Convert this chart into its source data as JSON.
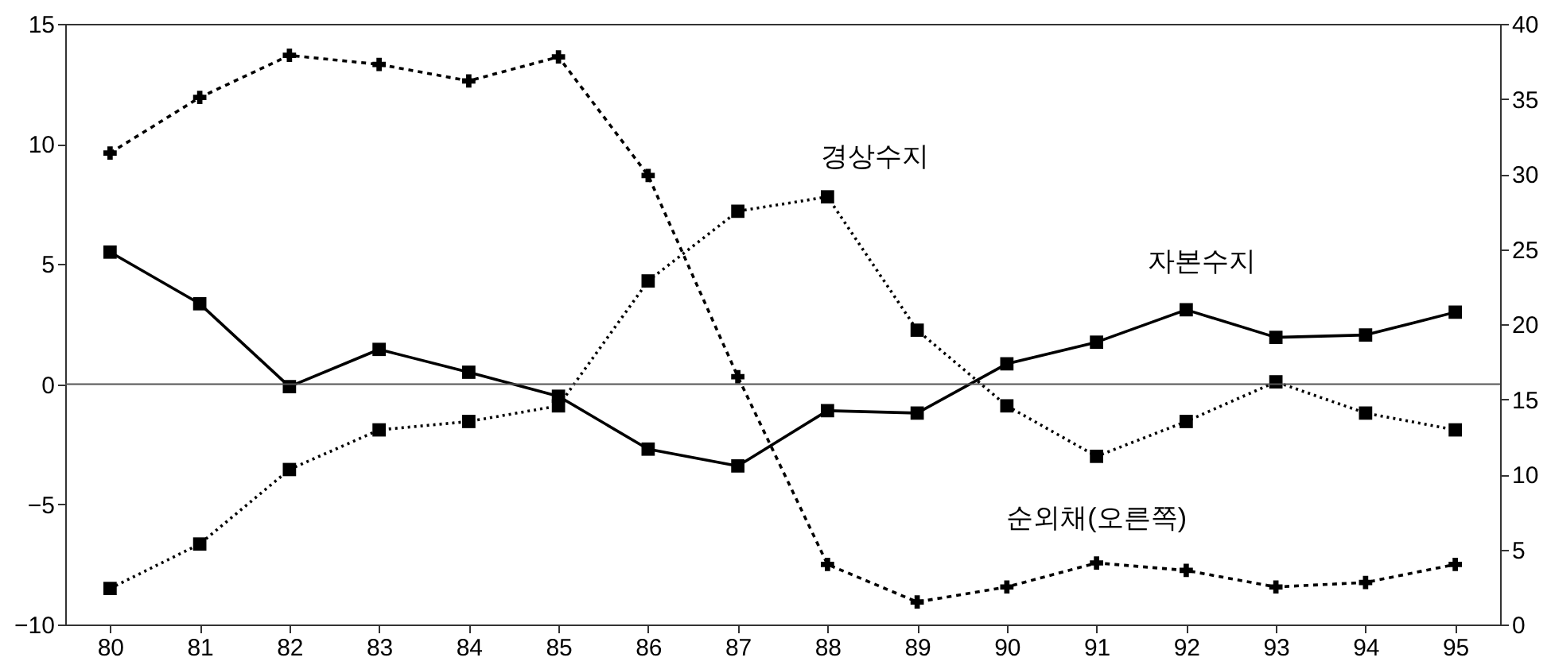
{
  "chart_data": {
    "type": "line",
    "categories": [
      "80",
      "81",
      "82",
      "83",
      "84",
      "85",
      "86",
      "87",
      "88",
      "89",
      "90",
      "91",
      "92",
      "93",
      "94",
      "95"
    ],
    "series": [
      {
        "name": "자본수지",
        "color": "#000000",
        "marker": "square",
        "line_style": "solid",
        "values": [
          5.5,
          3.35,
          -0.1,
          1.45,
          0.5,
          -0.5,
          -2.7,
          -3.4,
          -1.1,
          -1.2,
          0.85,
          1.75,
          3.1,
          1.95,
          2.05,
          3.0
        ]
      },
      {
        "name": "경상수지",
        "color": "#000000",
        "marker": "square",
        "line_style": "dotted",
        "values": [
          -8.5,
          -6.65,
          -3.55,
          -1.9,
          -1.55,
          -0.9,
          4.3,
          7.2,
          7.8,
          2.25,
          -0.9,
          -3.0,
          -1.55,
          0.1,
          -1.2,
          -1.9
        ]
      },
      {
        "name": "순외채(오른쪽)",
        "color": "#000000",
        "marker": "cross",
        "line_style": "dashed",
        "axis": "y2",
        "values": [
          31.4,
          35.1,
          37.9,
          37.3,
          36.2,
          37.8,
          29.9,
          16.5,
          4.0,
          1.5,
          2.5,
          4.1,
          3.6,
          2.5,
          2.8,
          4.0
        ]
      }
    ],
    "ylim": [
      -10,
      15
    ],
    "yticks": [
      -10,
      -5,
      0,
      5,
      10,
      15
    ],
    "y2lim": [
      0,
      40
    ],
    "y2ticks": [
      0,
      5,
      10,
      15,
      20,
      25,
      30,
      35,
      40
    ],
    "ref_lines": [
      {
        "axis": "y",
        "value": 0,
        "color": "#555555"
      }
    ],
    "grid": false,
    "legend": false
  }
}
